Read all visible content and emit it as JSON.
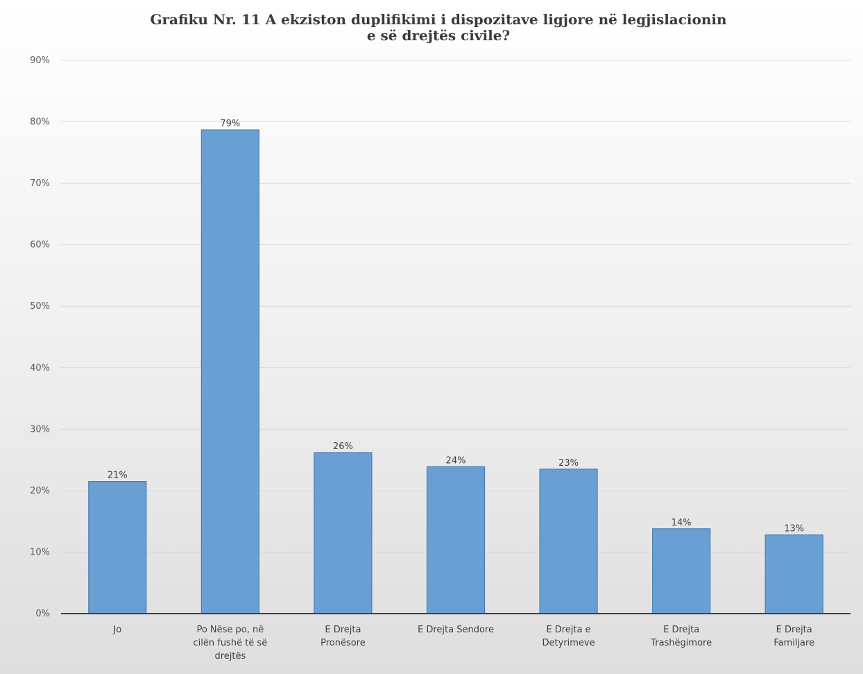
{
  "chart_data": {
    "type": "bar",
    "title": "Grafiku Nr. 11 A ekziston duplifikimi i dispozitave ligjore në legjislacionin e së drejtës civile?",
    "title_lines": [
      "Grafiku Nr. 11 A ekziston duplifikimi i dispozitave ligjore në legjislacionin",
      "e së drejtës civile?"
    ],
    "xlabel": "",
    "ylabel": "",
    "ylim": [
      0,
      90
    ],
    "y_ticks": [
      "0%",
      "10%",
      "20%",
      "30%",
      "40%",
      "50%",
      "60%",
      "70%",
      "80%",
      "90%"
    ],
    "grid": true,
    "legend": "none",
    "categories": [
      [
        "Jo"
      ],
      [
        "Po Nëse po, në",
        "cilën fushë të së",
        "drejtës"
      ],
      [
        "E Drejta",
        "Pronësore"
      ],
      [
        "E Drejta Sendore"
      ],
      [
        "E Drejta e",
        "Detyrimeve"
      ],
      [
        "E Drejta",
        "Trashëgimore"
      ],
      [
        "E Drejta",
        "Familjare"
      ]
    ],
    "values": [
      21.5,
      78.7,
      26.2,
      23.9,
      23.5,
      13.8,
      12.8
    ],
    "data_labels": [
      "21%",
      "79%",
      "26%",
      "24%",
      "23%",
      "14%",
      "13%"
    ],
    "bar_color": "#6a9fd4",
    "bar_edge_color": "#4a7eb5"
  }
}
